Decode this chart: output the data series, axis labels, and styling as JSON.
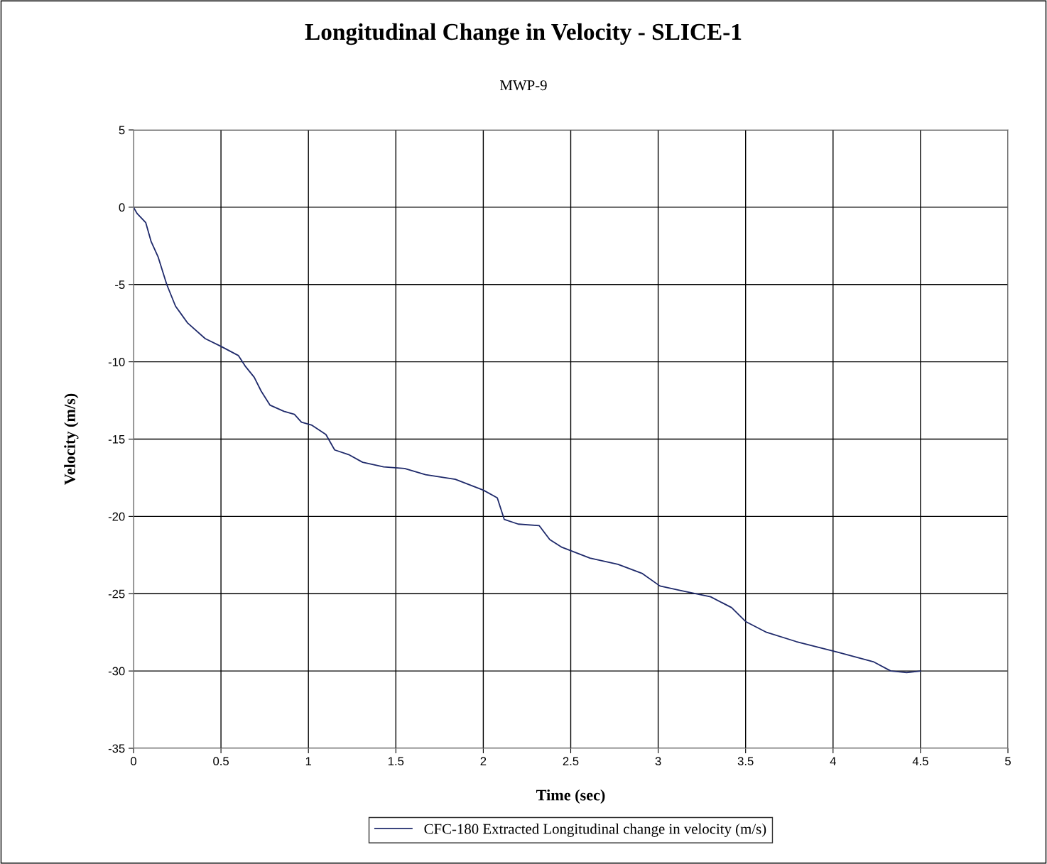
{
  "chart_data": {
    "type": "line",
    "title": "Longitudinal Change in Velocity - SLICE-1",
    "subtitle": "MWP-9",
    "xlabel": "Time (sec)",
    "ylabel": "Velocity (m/s)",
    "xlim": [
      0,
      5
    ],
    "xticks": [
      0,
      0.5,
      1,
      1.5,
      2,
      2.5,
      3,
      3.5,
      4,
      4.5,
      5
    ],
    "ylim": [
      -35,
      5
    ],
    "yticks": [
      -35,
      -30,
      -25,
      -20,
      -15,
      -10,
      -5,
      0,
      5
    ],
    "grid": true,
    "legend": "bottom",
    "marker": "none",
    "line_style": "solid",
    "series": [
      {
        "name": "CFC-180 Extracted Longitudinal change in velocity (m/s)",
        "color": "#1f2a6b",
        "x": [
          0,
          0.02,
          0.07,
          0.1,
          0.14,
          0.19,
          0.24,
          0.31,
          0.41,
          0.5,
          0.6,
          0.64,
          0.69,
          0.73,
          0.78,
          0.86,
          0.92,
          0.96,
          1.02,
          1.1,
          1.15,
          1.23,
          1.31,
          1.43,
          1.55,
          1.67,
          1.84,
          2.0,
          2.08,
          2.12,
          2.2,
          2.32,
          2.38,
          2.45,
          2.61,
          2.77,
          2.91,
          3.01,
          3.13,
          3.3,
          3.42,
          3.5,
          3.62,
          3.79,
          4.03,
          4.23,
          4.33,
          4.42,
          4.5
        ],
        "values": [
          0,
          -0.4,
          -1.0,
          -2.2,
          -3.2,
          -5.0,
          -6.4,
          -7.5,
          -8.5,
          -9.0,
          -9.6,
          -10.3,
          -11.0,
          -11.9,
          -12.8,
          -13.2,
          -13.4,
          -13.9,
          -14.1,
          -14.7,
          -15.7,
          -16.0,
          -16.5,
          -16.8,
          -16.9,
          -17.3,
          -17.6,
          -18.3,
          -18.8,
          -20.2,
          -20.5,
          -20.6,
          -21.5,
          -22.0,
          -22.7,
          -23.1,
          -23.7,
          -24.5,
          -24.8,
          -25.2,
          -25.9,
          -26.8,
          -27.5,
          -28.1,
          -28.8,
          -29.4,
          -30.0,
          -30.1,
          -30.0
        ]
      }
    ]
  }
}
